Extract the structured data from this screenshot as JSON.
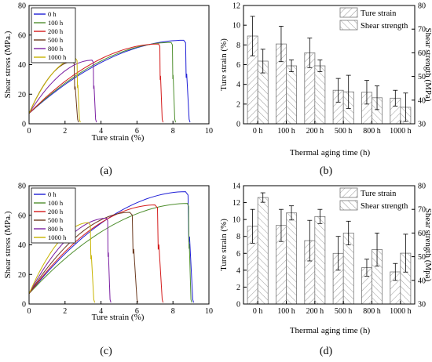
{
  "chart_data": [
    {
      "type": "line",
      "panel_label": "(a)",
      "xlabel": "Ture strain (%)",
      "ylabel": "Shear stress (MPa.)",
      "xlim": [
        0,
        10
      ],
      "ylim": [
        0,
        80
      ],
      "xticks": [
        "0",
        "2",
        "4",
        "6",
        "8",
        "10"
      ],
      "yticks": [
        "0",
        "20",
        "40",
        "60",
        "80"
      ],
      "legend_position": "top-left",
      "series": [
        {
          "name": "0 h",
          "color": "#1f1fd6",
          "peak_strain": 8.6,
          "peak_stress": 56.5,
          "break_strain": 8.9
        },
        {
          "name": "100 h",
          "color": "#4f8f2f",
          "peak_strain": 7.9,
          "peak_stress": 55,
          "break_strain": 8.1
        },
        {
          "name": "200 h",
          "color": "#d41b1b",
          "peak_strain": 7.2,
          "peak_stress": 54,
          "break_strain": 7.4
        },
        {
          "name": "500 h",
          "color": "#6b3a1f",
          "peak_strain": 2.4,
          "peak_stress": 42,
          "break_strain": 2.7
        },
        {
          "name": "800 h",
          "color": "#7b1fa2",
          "peak_strain": 3.5,
          "peak_stress": 43,
          "break_strain": 3.7
        },
        {
          "name": "1000 h",
          "color": "#c8b400",
          "peak_strain": 2.6,
          "peak_stress": 44,
          "break_strain": 2.8
        }
      ]
    },
    {
      "type": "bar",
      "panel_label": "(b)",
      "xlabel": "Thermal aging time (h)",
      "ylabel": "Ture strain (%)",
      "y2label": "Shear strength (MPa)",
      "categories": [
        "0 h",
        "100 h",
        "200 h",
        "500 h",
        "800 h",
        "1000 h"
      ],
      "ylim": [
        0,
        12
      ],
      "y2lim": [
        30,
        80
      ],
      "yticks": [
        "0",
        "2",
        "4",
        "6",
        "8",
        "10",
        "12"
      ],
      "y2ticks": [
        "30",
        "40",
        "50",
        "60",
        "70",
        "80"
      ],
      "legend_position": "top-right",
      "series": [
        {
          "name": "Ture strain",
          "axis": "left",
          "values": [
            8.9,
            8.1,
            7.2,
            3.4,
            3.2,
            2.6
          ],
          "errors": [
            2.0,
            1.8,
            1.5,
            1.2,
            1.2,
            0.8
          ]
        },
        {
          "name": "Shear strength",
          "axis": "right",
          "values": [
            56.5,
            54.5,
            54.5,
            43.5,
            41,
            37
          ],
          "errors": [
            5,
            2.5,
            2.5,
            7,
            5,
            6
          ]
        }
      ]
    },
    {
      "type": "line",
      "panel_label": "(c)",
      "xlabel": "Ture strain (%)",
      "ylabel": "Shear stress (MPa.)",
      "xlim": [
        0,
        10
      ],
      "ylim": [
        0,
        80
      ],
      "xticks": [
        "0",
        "2",
        "4",
        "6",
        "8",
        "10"
      ],
      "yticks": [
        "0",
        "20",
        "40",
        "60",
        "80"
      ],
      "legend_position": "top-left",
      "series": [
        {
          "name": "0 h",
          "color": "#1f1fd6",
          "peak_strain": 8.7,
          "peak_stress": 76,
          "break_strain": 9.1
        },
        {
          "name": "100 h",
          "color": "#4f8f2f",
          "peak_strain": 8.8,
          "peak_stress": 68,
          "break_strain": 9.0
        },
        {
          "name": "200 h",
          "color": "#d41b1b",
          "peak_strain": 7.0,
          "peak_stress": 67,
          "break_strain": 7.4
        },
        {
          "name": "500 h",
          "color": "#6b3a1f",
          "peak_strain": 5.6,
          "peak_stress": 62,
          "break_strain": 6.0
        },
        {
          "name": "800 h",
          "color": "#7b1fa2",
          "peak_strain": 4.3,
          "peak_stress": 58,
          "break_strain": 4.5
        },
        {
          "name": "1000 h",
          "color": "#c8b400",
          "peak_strain": 3.3,
          "peak_stress": 55,
          "break_strain": 3.6
        }
      ]
    },
    {
      "type": "bar",
      "panel_label": "(d)",
      "xlabel": "Thermal aging time (h)",
      "ylabel": "Ture strain (%)",
      "y2label": "Shear strength (Mpa)",
      "categories": [
        "0 h",
        "100 h",
        "200 h",
        "500 h",
        "800 h",
        "1000 h"
      ],
      "ylim": [
        0,
        14
      ],
      "y2lim": [
        30,
        80
      ],
      "yticks": [
        "0",
        "2",
        "4",
        "6",
        "8",
        "10",
        "12",
        "14"
      ],
      "y2ticks": [
        "30",
        "40",
        "50",
        "60",
        "70",
        "80"
      ],
      "legend_position": "top-right",
      "series": [
        {
          "name": "Ture strain",
          "axis": "left",
          "values": [
            9.2,
            9.3,
            7.5,
            6.0,
            4.3,
            3.8
          ],
          "errors": [
            2.0,
            1.9,
            2.4,
            2.0,
            1.0,
            1.0
          ]
        },
        {
          "name": "Shear strength",
          "axis": "right",
          "values": [
            75,
            68.5,
            67,
            60,
            53,
            51.5
          ],
          "errors": [
            2,
            3,
            3,
            5,
            7,
            8
          ]
        }
      ]
    }
  ]
}
